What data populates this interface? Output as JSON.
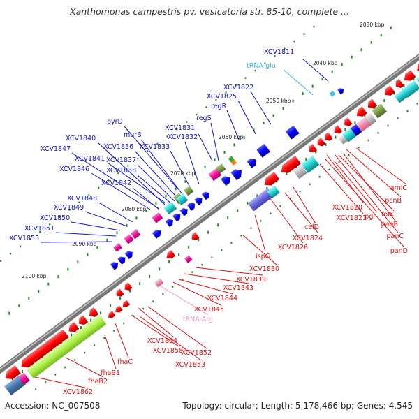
{
  "title": "Xanthomonas campestris pv. vesicatoria str. 85-10, complete ...",
  "footer": {
    "accession": "Accession: NC_007508",
    "topology": "Topology: circular; Length: 5,178,466 bp; Genes: 4,545"
  },
  "colors": {
    "forward_label": "#1111cc",
    "reverse_label": "#dd1111",
    "trna_forward": "#33bbdd",
    "trna_reverse": "#ee99bb",
    "backbone": "#888888",
    "tick": "#228822"
  },
  "ticks": [
    "2030 kbp",
    "2040 kbp",
    "2050 kbp",
    "2060 kbp",
    "2070 kbp",
    "2080 kbp",
    "2090 kbp",
    "2100 kbp"
  ],
  "forward_labels": [
    "XCV1811",
    "tRNA-glu",
    "XCV1822",
    "XCV1825",
    "regR",
    "regS",
    "pyrD",
    "XCV1831",
    "murB",
    "XCV1832",
    "XCV1833",
    "XCV1840",
    "XCV1836",
    "XCV1847",
    "XCV1841",
    "XCV1837",
    "XCV1846",
    "XCV1838",
    "XCV1842",
    "XCV1848",
    "XCV1849",
    "XCV1850",
    "XCV1851",
    "XCV1855"
  ],
  "reverse_labels": [
    "amiC",
    "pcnB",
    "XCV1820",
    "folK",
    "XCV1821",
    "pgi",
    "panB",
    "panC",
    "panD",
    "celD",
    "XCV1824",
    "XCV1826",
    "ispG",
    "XCV1830",
    "XCV1839",
    "XCV1843",
    "XCV1844",
    "tRNA-Arg",
    "XCV1845",
    "XCV1854",
    "XCV1858",
    "XCV1852",
    "fhaC",
    "XCV1853",
    "fhaB1",
    "fhaB2",
    "XCV1862"
  ]
}
